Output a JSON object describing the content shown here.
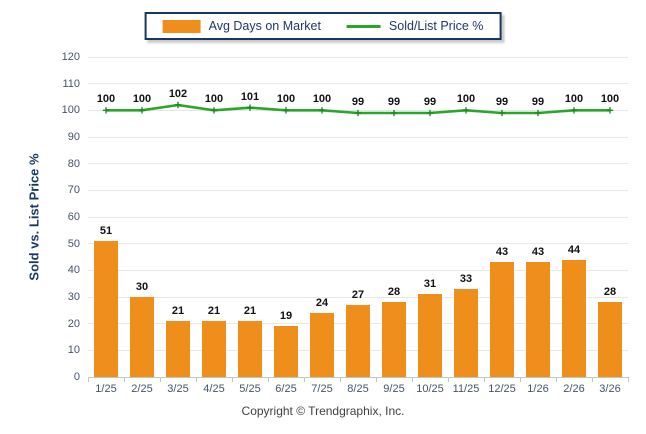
{
  "legend": {
    "items": [
      {
        "label": "Avg Days on Market",
        "type": "bar",
        "color": "#EF8E1B"
      },
      {
        "label": "Sold/List Price %",
        "type": "line",
        "color": "#2BA52B"
      }
    ]
  },
  "y_axis": {
    "title": "Sold vs. List Price %"
  },
  "footer": {
    "copyright": "Copyright © Trendgraphix, Inc."
  },
  "colors": {
    "bar": "#EF8E1B",
    "line": "#2BA52B",
    "line_marker": "#1E8A1E",
    "legend_border": "#17375E",
    "axis_text": "#44546A",
    "gridline": "#E8E8E8",
    "axis_line": "#C4C4C4"
  },
  "chart_data": {
    "type": "bar",
    "title": "",
    "categories": [
      "1/25",
      "2/25",
      "3/25",
      "4/25",
      "5/25",
      "6/25",
      "7/25",
      "8/25",
      "9/25",
      "10/25",
      "11/25",
      "12/25",
      "1/26",
      "2/26",
      "3/26"
    ],
    "series": [
      {
        "name": "Avg Days on Market",
        "type": "bar",
        "color": "#EF8E1B",
        "values": [
          51,
          30,
          21,
          21,
          21,
          19,
          24,
          27,
          28,
          31,
          33,
          43,
          43,
          44,
          28
        ]
      },
      {
        "name": "Sold/List Price %",
        "type": "line",
        "color": "#2BA52B",
        "values": [
          100,
          100,
          102,
          100,
          101,
          100,
          100,
          99,
          99,
          99,
          100,
          99,
          99,
          100,
          100
        ]
      }
    ],
    "xlabel": "",
    "ylabel": "Sold vs. List Price %",
    "ylim": [
      0,
      120
    ],
    "yticks": [
      0,
      10,
      20,
      30,
      40,
      50,
      60,
      70,
      80,
      90,
      100,
      110,
      120
    ],
    "grid": true,
    "legend_position": "top",
    "data_labels": true
  }
}
